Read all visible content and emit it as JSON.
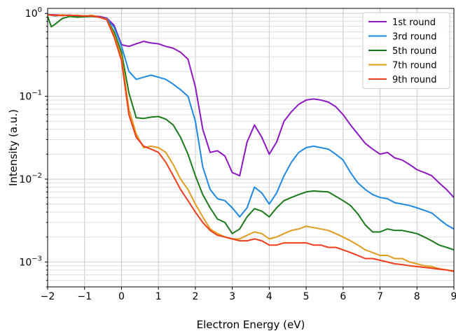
{
  "chart_data": {
    "type": "line",
    "xlabel": "Electron Energy (eV)",
    "ylabel": "Intensity (a.u.)",
    "xlim": [
      -2,
      9
    ],
    "ylim": [
      0.0005,
      1.15
    ],
    "yscale": "log",
    "grid": "major-and-minor",
    "legend_position": "top-right",
    "xticks": [
      -2,
      -1,
      0,
      1,
      2,
      3,
      4,
      5,
      6,
      7,
      8,
      9
    ],
    "xtick_labels": [
      "−2",
      "−1",
      "0",
      "1",
      "2",
      "3",
      "4",
      "5",
      "6",
      "7",
      "8",
      "9"
    ],
    "yticks": [
      0.001,
      0.01,
      0.1,
      1
    ],
    "series": [
      {
        "name": "1st round",
        "color": "#8e17c4",
        "points": [
          [
            -2.0,
            0.97
          ],
          [
            -1.8,
            0.96
          ],
          [
            -1.6,
            0.95
          ],
          [
            -1.4,
            0.95
          ],
          [
            -1.2,
            0.93
          ],
          [
            -1.0,
            0.92
          ],
          [
            -0.8,
            0.93
          ],
          [
            -0.6,
            0.92
          ],
          [
            -0.4,
            0.88
          ],
          [
            -0.2,
            0.72
          ],
          [
            0.0,
            0.42
          ],
          [
            0.2,
            0.4
          ],
          [
            0.4,
            0.43
          ],
          [
            0.6,
            0.46
          ],
          [
            0.8,
            0.44
          ],
          [
            1.0,
            0.43
          ],
          [
            1.2,
            0.4
          ],
          [
            1.4,
            0.38
          ],
          [
            1.6,
            0.34
          ],
          [
            1.8,
            0.28
          ],
          [
            2.0,
            0.13
          ],
          [
            2.2,
            0.04
          ],
          [
            2.4,
            0.021
          ],
          [
            2.6,
            0.022
          ],
          [
            2.8,
            0.019
          ],
          [
            3.0,
            0.012
          ],
          [
            3.2,
            0.011
          ],
          [
            3.4,
            0.028
          ],
          [
            3.6,
            0.045
          ],
          [
            3.8,
            0.032
          ],
          [
            4.0,
            0.02
          ],
          [
            4.2,
            0.028
          ],
          [
            4.4,
            0.05
          ],
          [
            4.6,
            0.065
          ],
          [
            4.8,
            0.08
          ],
          [
            5.0,
            0.09
          ],
          [
            5.2,
            0.093
          ],
          [
            5.4,
            0.09
          ],
          [
            5.6,
            0.085
          ],
          [
            5.8,
            0.075
          ],
          [
            6.0,
            0.06
          ],
          [
            6.2,
            0.045
          ],
          [
            6.4,
            0.035
          ],
          [
            6.6,
            0.027
          ],
          [
            6.8,
            0.023
          ],
          [
            7.0,
            0.02
          ],
          [
            7.2,
            0.021
          ],
          [
            7.4,
            0.018
          ],
          [
            7.6,
            0.017
          ],
          [
            7.8,
            0.015
          ],
          [
            8.0,
            0.013
          ],
          [
            8.2,
            0.012
          ],
          [
            8.4,
            0.011
          ],
          [
            8.6,
            0.009
          ],
          [
            8.8,
            0.0075
          ],
          [
            9.0,
            0.006
          ]
        ]
      },
      {
        "name": "3rd round",
        "color": "#1e88e5",
        "points": [
          [
            -2.0,
            0.97
          ],
          [
            -1.8,
            0.93
          ],
          [
            -1.6,
            0.96
          ],
          [
            -1.4,
            0.94
          ],
          [
            -1.2,
            0.93
          ],
          [
            -1.0,
            0.92
          ],
          [
            -0.8,
            0.94
          ],
          [
            -0.6,
            0.9
          ],
          [
            -0.4,
            0.86
          ],
          [
            -0.2,
            0.68
          ],
          [
            0.0,
            0.4
          ],
          [
            0.2,
            0.2
          ],
          [
            0.4,
            0.16
          ],
          [
            0.6,
            0.17
          ],
          [
            0.8,
            0.18
          ],
          [
            1.0,
            0.17
          ],
          [
            1.2,
            0.16
          ],
          [
            1.4,
            0.14
          ],
          [
            1.6,
            0.12
          ],
          [
            1.8,
            0.1
          ],
          [
            2.0,
            0.05
          ],
          [
            2.2,
            0.014
          ],
          [
            2.4,
            0.0075
          ],
          [
            2.6,
            0.0058
          ],
          [
            2.8,
            0.0055
          ],
          [
            3.0,
            0.0045
          ],
          [
            3.2,
            0.0035
          ],
          [
            3.4,
            0.0045
          ],
          [
            3.6,
            0.008
          ],
          [
            3.8,
            0.0068
          ],
          [
            4.0,
            0.005
          ],
          [
            4.2,
            0.0068
          ],
          [
            4.4,
            0.011
          ],
          [
            4.6,
            0.016
          ],
          [
            4.8,
            0.021
          ],
          [
            5.0,
            0.024
          ],
          [
            5.2,
            0.025
          ],
          [
            5.4,
            0.024
          ],
          [
            5.6,
            0.023
          ],
          [
            5.8,
            0.02
          ],
          [
            6.0,
            0.017
          ],
          [
            6.2,
            0.012
          ],
          [
            6.4,
            0.009
          ],
          [
            6.6,
            0.0075
          ],
          [
            6.8,
            0.0065
          ],
          [
            7.0,
            0.006
          ],
          [
            7.2,
            0.0058
          ],
          [
            7.4,
            0.0052
          ],
          [
            7.6,
            0.005
          ],
          [
            7.8,
            0.0048
          ],
          [
            8.0,
            0.0045
          ],
          [
            8.2,
            0.0042
          ],
          [
            8.4,
            0.0039
          ],
          [
            8.6,
            0.0033
          ],
          [
            8.8,
            0.0028
          ],
          [
            9.0,
            0.0025
          ]
        ]
      },
      {
        "name": "5th round",
        "color": "#1a7a1a",
        "points": [
          [
            -2.0,
            0.92
          ],
          [
            -1.9,
            0.69
          ],
          [
            -1.8,
            0.74
          ],
          [
            -1.6,
            0.87
          ],
          [
            -1.4,
            0.92
          ],
          [
            -1.2,
            0.9
          ],
          [
            -1.0,
            0.91
          ],
          [
            -0.8,
            0.92
          ],
          [
            -0.6,
            0.9
          ],
          [
            -0.4,
            0.85
          ],
          [
            -0.2,
            0.6
          ],
          [
            0.0,
            0.34
          ],
          [
            0.2,
            0.11
          ],
          [
            0.4,
            0.055
          ],
          [
            0.6,
            0.054
          ],
          [
            0.8,
            0.056
          ],
          [
            1.0,
            0.057
          ],
          [
            1.2,
            0.053
          ],
          [
            1.4,
            0.045
          ],
          [
            1.6,
            0.032
          ],
          [
            1.8,
            0.02
          ],
          [
            2.0,
            0.011
          ],
          [
            2.2,
            0.0065
          ],
          [
            2.4,
            0.0045
          ],
          [
            2.6,
            0.0033
          ],
          [
            2.8,
            0.003
          ],
          [
            3.0,
            0.0022
          ],
          [
            3.2,
            0.0025
          ],
          [
            3.4,
            0.0035
          ],
          [
            3.6,
            0.0044
          ],
          [
            3.8,
            0.0041
          ],
          [
            4.0,
            0.0035
          ],
          [
            4.2,
            0.0045
          ],
          [
            4.4,
            0.0055
          ],
          [
            4.6,
            0.006
          ],
          [
            4.8,
            0.0065
          ],
          [
            5.0,
            0.007
          ],
          [
            5.2,
            0.0072
          ],
          [
            5.4,
            0.0071
          ],
          [
            5.6,
            0.007
          ],
          [
            5.8,
            0.0062
          ],
          [
            6.0,
            0.0055
          ],
          [
            6.2,
            0.0048
          ],
          [
            6.4,
            0.0038
          ],
          [
            6.6,
            0.0028
          ],
          [
            6.8,
            0.0023
          ],
          [
            7.0,
            0.0023
          ],
          [
            7.2,
            0.0025
          ],
          [
            7.4,
            0.0024
          ],
          [
            7.6,
            0.0024
          ],
          [
            7.8,
            0.0023
          ],
          [
            8.0,
            0.0022
          ],
          [
            8.2,
            0.002
          ],
          [
            8.4,
            0.0018
          ],
          [
            8.6,
            0.0016
          ],
          [
            8.8,
            0.0015
          ],
          [
            9.0,
            0.0014
          ]
        ]
      },
      {
        "name": "7th round",
        "color": "#e09b1c",
        "points": [
          [
            -2.0,
            0.97
          ],
          [
            -1.8,
            0.94
          ],
          [
            -1.6,
            0.96
          ],
          [
            -1.4,
            0.94
          ],
          [
            -1.2,
            0.95
          ],
          [
            -1.0,
            0.93
          ],
          [
            -0.8,
            0.95
          ],
          [
            -0.6,
            0.9
          ],
          [
            -0.4,
            0.85
          ],
          [
            -0.2,
            0.55
          ],
          [
            0.0,
            0.3
          ],
          [
            0.2,
            0.07
          ],
          [
            0.4,
            0.035
          ],
          [
            0.6,
            0.024
          ],
          [
            0.8,
            0.025
          ],
          [
            1.0,
            0.024
          ],
          [
            1.2,
            0.021
          ],
          [
            1.4,
            0.015
          ],
          [
            1.6,
            0.01
          ],
          [
            1.8,
            0.0075
          ],
          [
            2.0,
            0.005
          ],
          [
            2.2,
            0.0035
          ],
          [
            2.4,
            0.0025
          ],
          [
            2.6,
            0.0022
          ],
          [
            2.8,
            0.002
          ],
          [
            3.0,
            0.0019
          ],
          [
            3.2,
            0.0019
          ],
          [
            3.4,
            0.0021
          ],
          [
            3.6,
            0.0023
          ],
          [
            3.8,
            0.0022
          ],
          [
            4.0,
            0.0019
          ],
          [
            4.2,
            0.002
          ],
          [
            4.4,
            0.0022
          ],
          [
            4.6,
            0.0024
          ],
          [
            4.8,
            0.0025
          ],
          [
            5.0,
            0.0027
          ],
          [
            5.2,
            0.0026
          ],
          [
            5.4,
            0.0025
          ],
          [
            5.6,
            0.0024
          ],
          [
            5.8,
            0.0022
          ],
          [
            6.0,
            0.002
          ],
          [
            6.2,
            0.0018
          ],
          [
            6.4,
            0.0016
          ],
          [
            6.6,
            0.0014
          ],
          [
            6.8,
            0.0013
          ],
          [
            7.0,
            0.0012
          ],
          [
            7.2,
            0.0012
          ],
          [
            7.4,
            0.0011
          ],
          [
            7.6,
            0.0011
          ],
          [
            7.8,
            0.001
          ],
          [
            8.0,
            0.00095
          ],
          [
            8.2,
            0.0009
          ],
          [
            8.4,
            0.00088
          ],
          [
            8.6,
            0.00083
          ],
          [
            8.8,
            0.0008
          ],
          [
            9.0,
            0.00078
          ]
        ]
      },
      {
        "name": "9th round",
        "color": "#f03c1a",
        "points": [
          [
            -2.0,
            0.96
          ],
          [
            -1.8,
            0.95
          ],
          [
            -1.6,
            0.94
          ],
          [
            -1.4,
            0.95
          ],
          [
            -1.2,
            0.94
          ],
          [
            -1.0,
            0.93
          ],
          [
            -0.8,
            0.93
          ],
          [
            -0.6,
            0.9
          ],
          [
            -0.4,
            0.84
          ],
          [
            -0.2,
            0.52
          ],
          [
            0.0,
            0.27
          ],
          [
            0.2,
            0.06
          ],
          [
            0.4,
            0.032
          ],
          [
            0.6,
            0.025
          ],
          [
            0.8,
            0.023
          ],
          [
            1.0,
            0.021
          ],
          [
            1.2,
            0.016
          ],
          [
            1.4,
            0.011
          ],
          [
            1.6,
            0.0075
          ],
          [
            1.8,
            0.0055
          ],
          [
            2.0,
            0.004
          ],
          [
            2.2,
            0.003
          ],
          [
            2.4,
            0.0024
          ],
          [
            2.6,
            0.0021
          ],
          [
            2.8,
            0.002
          ],
          [
            3.0,
            0.0019
          ],
          [
            3.2,
            0.0018
          ],
          [
            3.4,
            0.0018
          ],
          [
            3.6,
            0.0019
          ],
          [
            3.8,
            0.0018
          ],
          [
            4.0,
            0.0016
          ],
          [
            4.2,
            0.0016
          ],
          [
            4.4,
            0.0017
          ],
          [
            4.6,
            0.0017
          ],
          [
            4.8,
            0.0017
          ],
          [
            5.0,
            0.0017
          ],
          [
            5.2,
            0.0016
          ],
          [
            5.4,
            0.0016
          ],
          [
            5.6,
            0.0015
          ],
          [
            5.8,
            0.0015
          ],
          [
            6.0,
            0.0014
          ],
          [
            6.2,
            0.0013
          ],
          [
            6.4,
            0.0012
          ],
          [
            6.6,
            0.0011
          ],
          [
            6.8,
            0.0011
          ],
          [
            7.0,
            0.00105
          ],
          [
            7.2,
            0.001
          ],
          [
            7.4,
            0.00095
          ],
          [
            7.6,
            0.00093
          ],
          [
            7.8,
            0.0009
          ],
          [
            8.0,
            0.00088
          ],
          [
            8.2,
            0.00086
          ],
          [
            8.4,
            0.00084
          ],
          [
            8.6,
            0.00082
          ],
          [
            8.8,
            0.0008
          ],
          [
            9.0,
            0.00077
          ]
        ]
      }
    ]
  }
}
